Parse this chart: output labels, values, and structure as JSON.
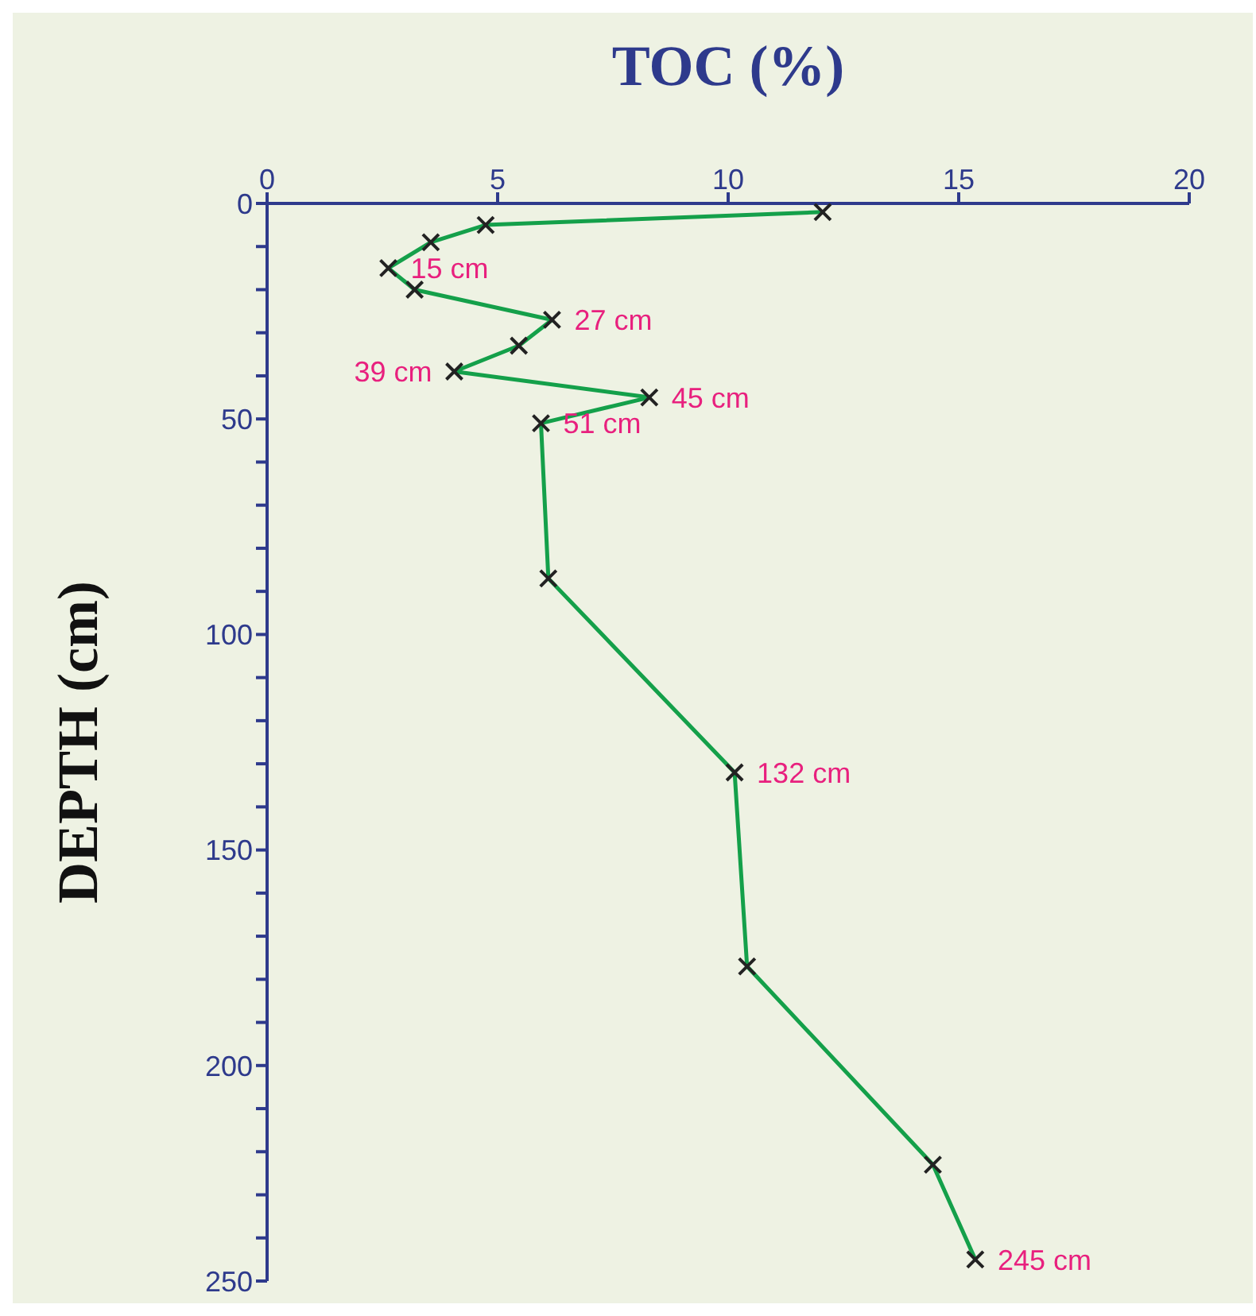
{
  "chart_data": {
    "type": "line",
    "xlabel": "TOC (%)",
    "ylabel": "DEPTH (cm)",
    "xlim": [
      0,
      20
    ],
    "xticks": [
      0,
      5,
      10,
      15,
      20
    ],
    "ylim": [
      250,
      0
    ],
    "yticks": [
      0,
      {
        "value": 10,
        "label": null
      },
      {
        "value": 20,
        "label": null
      },
      {
        "value": 30,
        "label": null
      },
      {
        "value": 40,
        "label": null
      },
      50,
      {
        "value": 60,
        "label": null
      },
      {
        "value": 70,
        "label": null
      },
      {
        "value": 80,
        "label": null
      },
      {
        "value": 90,
        "label": null
      },
      100,
      {
        "value": 110,
        "label": null
      },
      {
        "value": 120,
        "label": null
      },
      {
        "value": 130,
        "label": null
      },
      {
        "value": 140,
        "label": null
      },
      150,
      {
        "value": 160,
        "label": null
      },
      {
        "value": 170,
        "label": null
      },
      {
        "value": 180,
        "label": null
      },
      {
        "value": 190,
        "label": null
      },
      200,
      {
        "value": 210,
        "label": null
      },
      {
        "value": 220,
        "label": null
      },
      {
        "value": 230,
        "label": null
      },
      {
        "value": 240,
        "label": null
      },
      250
    ],
    "series": [
      {
        "color": "#14a04a",
        "x": [
          12.05,
          4.74,
          3.55,
          2.63,
          3.2,
          6.18,
          5.46,
          4.06,
          8.29,
          5.94,
          6.1,
          10.14,
          10.41,
          14.44,
          15.36
        ],
        "values": [
          2,
          5,
          9,
          15,
          20,
          27,
          33,
          39,
          45,
          51,
          87,
          132,
          177,
          223,
          245
        ]
      }
    ],
    "marker": "cross",
    "grid": false,
    "legend": false,
    "annotations": [
      {
        "text": "15 cm",
        "x": 2.63,
        "y": 15
      },
      {
        "text": "27 cm",
        "x": 6.18,
        "y": 27
      },
      {
        "text": "39 cm",
        "x": 4.06,
        "y": 39
      },
      {
        "text": "45 cm",
        "x": 8.29,
        "y": 45
      },
      {
        "text": "51 cm",
        "x": 5.94,
        "y": 51
      },
      {
        "text": "132 cm",
        "x": 10.14,
        "y": 132
      },
      {
        "text": "245 cm",
        "x": 15.36,
        "y": 245
      }
    ]
  }
}
